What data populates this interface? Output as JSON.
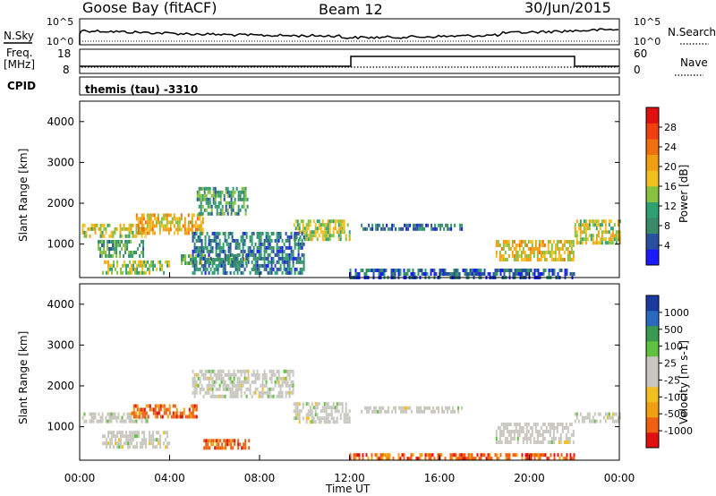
{
  "header": {
    "station": "Goose Bay (fitACF)",
    "beam": "Beam 12",
    "date": "30/Jun/2015"
  },
  "noise_panel": {
    "left_label": "N.Sky",
    "left_ticks": [
      "10^5",
      "10^0"
    ],
    "right_label": "N.Search",
    "right_ticks": [
      "10^5",
      "10^0"
    ]
  },
  "freq_panel": {
    "label_top": "Freq.",
    "label_unit": "[MHz]",
    "left_ticks": [
      "18",
      "8"
    ],
    "right_label": "Nave",
    "right_ticks": [
      "60",
      "0"
    ]
  },
  "cpid": {
    "label": "CPID",
    "value": "themis (tau) -3310"
  },
  "time_axis": {
    "ticks": [
      "00:00",
      "04:00",
      "08:00",
      "12:00",
      "16:00",
      "20:00",
      "00:00"
    ],
    "label": "Time UT"
  },
  "colors": {
    "power_scale": [
      "#1a1aff",
      "#2b4fa0",
      "#3a8a6a",
      "#2fa070",
      "#88c040",
      "#f0c020",
      "#f0a010",
      "#f07010",
      "#f04010",
      "#e01010"
    ],
    "velocity_scale": [
      "#1a3aa0",
      "#2a6ac0",
      "#3a9a50",
      "#60c040",
      "#c8c8c0",
      "#c8c8c0",
      "#f0c020",
      "#f0a010",
      "#f06010",
      "#e01010"
    ]
  },
  "chart_data": [
    {
      "type": "heatmap",
      "title": "Power",
      "xlabel": "Time UT",
      "ylabel": "Slant Range [km]",
      "ylim": [
        180,
        4500
      ],
      "xlim_hours": [
        0,
        24
      ],
      "yticks": [
        "4000",
        "3000",
        "2000",
        "1000"
      ],
      "colorbar": {
        "label": "Power [dB]",
        "ticks": [
          "28",
          "24",
          "20",
          "16",
          "12",
          "8",
          "4"
        ]
      },
      "regions": [
        {
          "t0": 0.1,
          "t1": 3.0,
          "r0": 1150,
          "r1": 1500,
          "level": 16
        },
        {
          "t0": 0.8,
          "t1": 2.8,
          "r0": 700,
          "r1": 1100,
          "level": 10
        },
        {
          "t0": 2.5,
          "t1": 5.5,
          "r0": 1300,
          "r1": 1750,
          "level": 18
        },
        {
          "t0": 5.2,
          "t1": 7.5,
          "r0": 1700,
          "r1": 2400,
          "level": 10
        },
        {
          "t0": 1.0,
          "t1": 4.0,
          "r0": 300,
          "r1": 600,
          "level": 14
        },
        {
          "t0": 4.5,
          "t1": 7.5,
          "r0": 500,
          "r1": 750,
          "level": 11
        },
        {
          "t0": 9.5,
          "t1": 12.0,
          "r0": 1100,
          "r1": 1600,
          "level": 14
        },
        {
          "t0": 5.0,
          "t1": 10.0,
          "r0": 250,
          "r1": 1300,
          "level": 7
        },
        {
          "t0": 12.0,
          "t1": 22.0,
          "r0": 180,
          "r1": 400,
          "level": 5
        },
        {
          "t0": 18.5,
          "t1": 22.0,
          "r0": 650,
          "r1": 1100,
          "level": 17
        },
        {
          "t0": 22.0,
          "t1": 24.0,
          "r0": 1000,
          "r1": 1600,
          "level": 15
        },
        {
          "t0": 12.5,
          "t1": 17.0,
          "r0": 1350,
          "r1": 1500,
          "level": 6
        }
      ]
    },
    {
      "type": "heatmap",
      "title": "Velocity",
      "xlabel": "Time UT",
      "ylabel": "Slant Range [km]",
      "ylim": [
        180,
        4500
      ],
      "xlim_hours": [
        0,
        24
      ],
      "yticks": [
        "4000",
        "3000",
        "2000",
        "1000"
      ],
      "colorbar": {
        "label": "Velocity [m s-1]",
        "ticks": [
          "1000",
          "500",
          "100",
          "25",
          "-25",
          "-100",
          "-500",
          "-1000"
        ]
      },
      "regions": [
        {
          "t0": 0.1,
          "t1": 3.0,
          "r0": 1150,
          "r1": 1350,
          "level": 0
        },
        {
          "t0": 2.3,
          "t1": 5.2,
          "r0": 1200,
          "r1": 1550,
          "level": -500
        },
        {
          "t0": 5.0,
          "t1": 9.5,
          "r0": 1700,
          "r1": 2400,
          "level": 0
        },
        {
          "t0": 9.5,
          "t1": 12.0,
          "r0": 1150,
          "r1": 1600,
          "level": 0
        },
        {
          "t0": 1.0,
          "t1": 4.0,
          "r0": 500,
          "r1": 900,
          "level": 0
        },
        {
          "t0": 5.5,
          "t1": 7.5,
          "r0": 500,
          "r1": 700,
          "level": -100
        },
        {
          "t0": 12.5,
          "t1": 17.0,
          "r0": 1350,
          "r1": 1500,
          "level": 0
        },
        {
          "t0": 18.5,
          "t1": 22.0,
          "r0": 650,
          "r1": 1100,
          "level": 0
        },
        {
          "t0": 22.0,
          "t1": 24.0,
          "r0": 1100,
          "r1": 1350,
          "level": 0
        },
        {
          "t0": 12.0,
          "t1": 22.0,
          "r0": 180,
          "r1": 350,
          "level": -100
        }
      ]
    }
  ]
}
